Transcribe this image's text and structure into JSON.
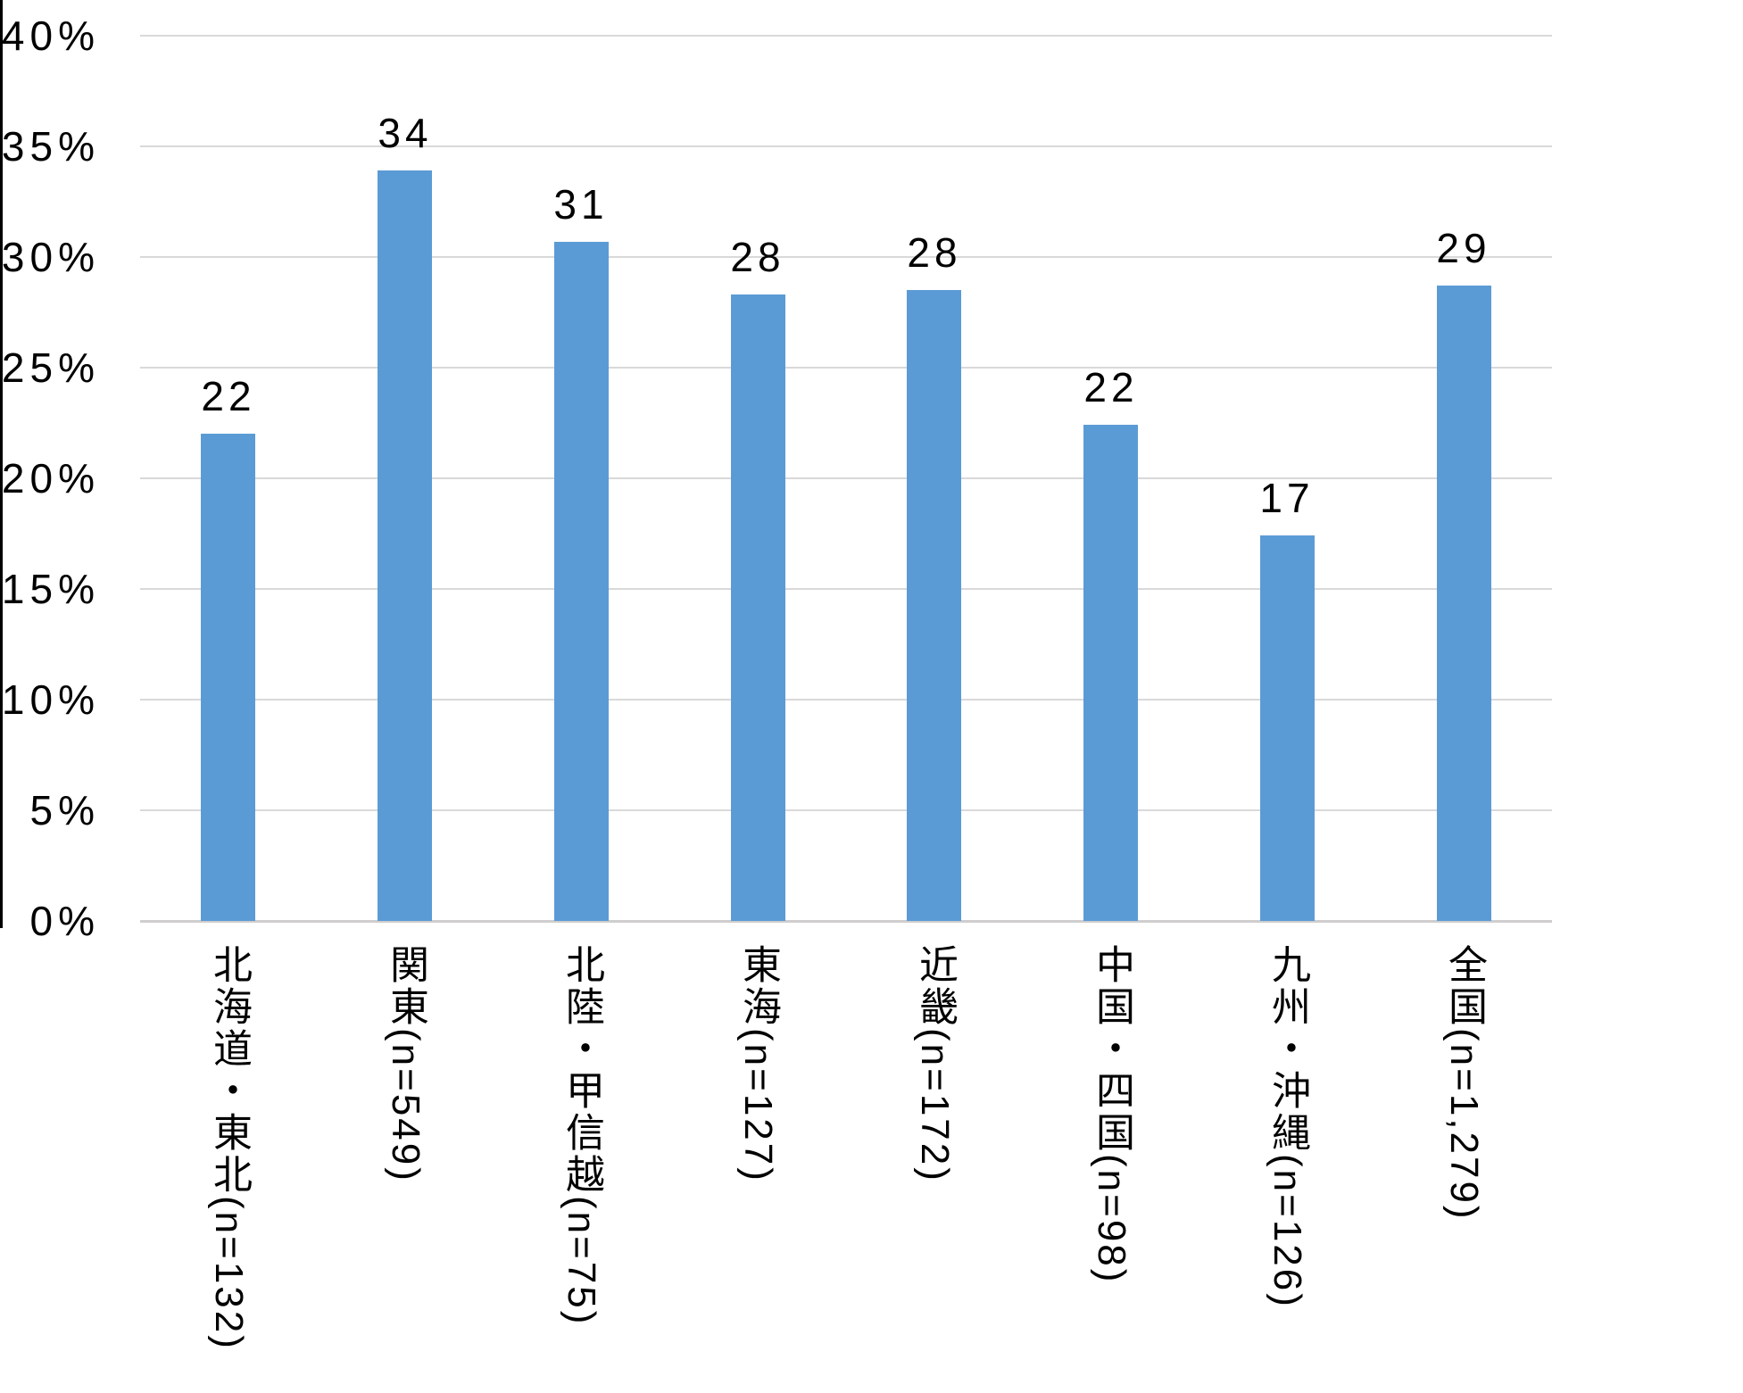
{
  "chart_data": {
    "type": "bar",
    "title": "",
    "xlabel": "",
    "ylabel": "",
    "categories": [
      "北海道・東北(n=132)",
      "関東(n=549)",
      "北陸・甲信越(n=75)",
      "東海(n=127)",
      "近畿(n=172)",
      "中国・四国(n=98)",
      "九州・沖縄(n=126)",
      "全国(n=1,279)"
    ],
    "values": [
      22.0,
      33.9,
      30.7,
      28.3,
      28.5,
      22.4,
      17.4,
      28.7
    ],
    "bar_labels": [
      "22",
      "34",
      "31",
      "28",
      "28",
      "22",
      "17",
      "29"
    ],
    "ylim": [
      0,
      40
    ],
    "ytick_values": [
      0,
      5,
      10,
      15,
      20,
      25,
      30,
      35,
      40
    ],
    "ytick_labels": [
      "0%",
      "5%",
      "10%",
      "15%",
      "20%",
      "25%",
      "30%",
      "35%",
      "40%"
    ],
    "grid": "horizontal",
    "legend": "none",
    "colors": {
      "bar": "#5B9BD5",
      "gridline": "#D9D9D9",
      "baseline": "#CFCDCD",
      "axis_line": "#000000",
      "text": "#000000"
    }
  }
}
